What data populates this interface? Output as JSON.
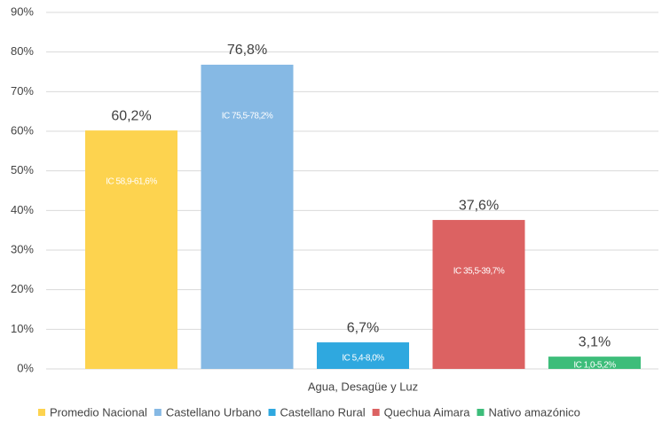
{
  "chart_data": {
    "type": "bar",
    "categories": [
      "Agua, Desagüe y Luz"
    ],
    "series": [
      {
        "name": "Promedio Nacional",
        "color": "#fdd34f",
        "values": [
          60.2
        ],
        "value_labels": [
          "60,2%"
        ],
        "annotations": [
          "IC 58,9-61,6%"
        ]
      },
      {
        "name": "Castellano Urbano",
        "color": "#86b9e4",
        "values": [
          76.8
        ],
        "value_labels": [
          "76,8%"
        ],
        "annotations": [
          "IC 75,5-78,2%"
        ]
      },
      {
        "name": "Castellano Rural",
        "color": "#2fa8df",
        "values": [
          6.7
        ],
        "value_labels": [
          "6,7%"
        ],
        "annotations": [
          "IC 5,4-8,0%"
        ]
      },
      {
        "name": "Quechua Aimara",
        "color": "#dc6262",
        "values": [
          37.6
        ],
        "value_labels": [
          "37,6%"
        ],
        "annotations": [
          "IC 35,5-39,7%"
        ]
      },
      {
        "name": "Nativo amazónico",
        "color": "#3dbd7a",
        "values": [
          3.1
        ],
        "value_labels": [
          "3,1%"
        ],
        "annotations": [
          "IC 1,0-5,2%"
        ]
      }
    ],
    "ylim": [
      0,
      90
    ],
    "yticks": [
      {
        "value": 0,
        "label": "0%"
      },
      {
        "value": 10,
        "label": "10%"
      },
      {
        "value": 20,
        "label": "20%"
      },
      {
        "value": 30,
        "label": "30%"
      },
      {
        "value": 40,
        "label": "40%"
      },
      {
        "value": 50,
        "label": "50%"
      },
      {
        "value": 60,
        "label": "60%"
      },
      {
        "value": 70,
        "label": "70%"
      },
      {
        "value": 80,
        "label": "80%"
      },
      {
        "value": 90,
        "label": "90%"
      }
    ],
    "grid": true,
    "legend": "bottom"
  }
}
